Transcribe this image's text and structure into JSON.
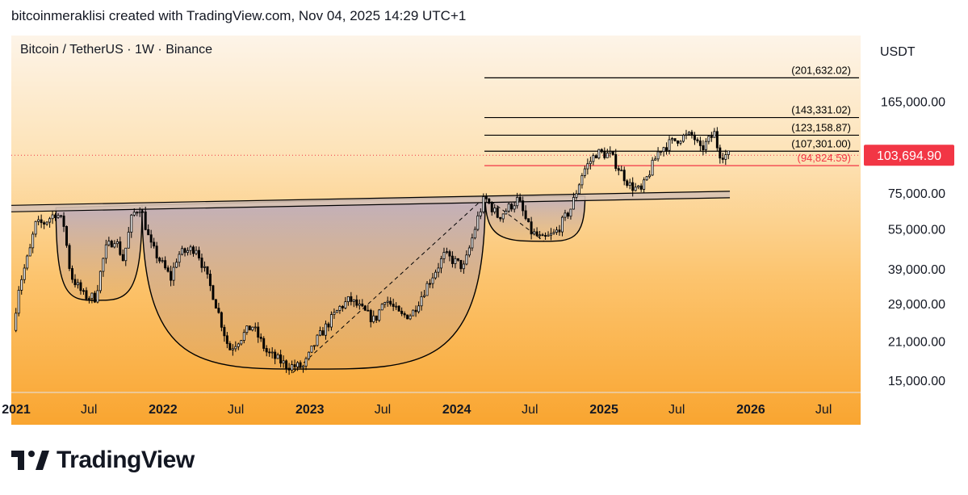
{
  "header": {
    "attribution": "bitcoinmeraklisi created with TradingView.com, Nov 04, 2025 14:29 UTC+1"
  },
  "footer": {
    "brand": "TradingView"
  },
  "chart_data": {
    "type": "candlestick",
    "title": "Bitcoin / TetherUS · 1W · Binance",
    "currency_label": "USDT",
    "y_scale": "log",
    "ylim": [
      13500,
      290000
    ],
    "xlim": [
      "2020-12-20",
      "2026-10-01"
    ],
    "y_ticks": [
      {
        "value": 165000,
        "label": "165,000.00"
      },
      {
        "value": 75000,
        "label": "75,000.00"
      },
      {
        "value": 55000,
        "label": "55,000.00"
      },
      {
        "value": 39000,
        "label": "39,000.00"
      },
      {
        "value": 29000,
        "label": "29,000.00"
      },
      {
        "value": 21000,
        "label": "21,000.00"
      },
      {
        "value": 15000,
        "label": "15,000.00"
      }
    ],
    "x_ticks": [
      {
        "date": "2021-01-01",
        "label": "2021",
        "bold": true
      },
      {
        "date": "2021-07-01",
        "label": "Jul",
        "bold": false
      },
      {
        "date": "2022-01-01",
        "label": "2022",
        "bold": true
      },
      {
        "date": "2022-07-01",
        "label": "Jul",
        "bold": false
      },
      {
        "date": "2023-01-01",
        "label": "2023",
        "bold": true
      },
      {
        "date": "2023-07-01",
        "label": "Jul",
        "bold": false
      },
      {
        "date": "2024-01-01",
        "label": "2024",
        "bold": true
      },
      {
        "date": "2024-07-01",
        "label": "Jul",
        "bold": false
      },
      {
        "date": "2025-01-01",
        "label": "2025",
        "bold": true
      },
      {
        "date": "2025-07-01",
        "label": "Jul",
        "bold": false
      },
      {
        "date": "2026-01-01",
        "label": "2026",
        "bold": true
      },
      {
        "date": "2026-07-01",
        "label": "Jul",
        "bold": false
      }
    ],
    "current_price": {
      "value": 103694.9,
      "label": "103,694.90",
      "color": "#f23645"
    },
    "horizontal_levels": [
      {
        "value": 201632.02,
        "label": "(201,632.02)",
        "color": "#000000"
      },
      {
        "value": 143331.02,
        "label": "(143,331.02)",
        "color": "#000000"
      },
      {
        "value": 123158.87,
        "label": "(123,158.87)",
        "color": "#000000"
      },
      {
        "value": 107301.0,
        "label": "(107,301.00)",
        "color": "#000000"
      },
      {
        "value": 94824.59,
        "label": "(94,824.59)",
        "color": "#f23645"
      }
    ],
    "levels_start_date": "2024-03-10",
    "neckline": {
      "start": {
        "date": "2020-12-20",
        "value": 66000
      },
      "end": {
        "date": "2025-11-10",
        "value": 74500
      }
    },
    "cups": [
      {
        "start": {
          "date": "2021-04-10",
          "value": 66000
        },
        "bottom": {
          "date": "2021-07-20",
          "value": 29800
        },
        "end": {
          "date": "2021-11-10",
          "value": 67500
        }
      },
      {
        "start": {
          "date": "2021-11-10",
          "value": 67500
        },
        "bottom": {
          "date": "2022-12-28",
          "value": 16500
        },
        "end": {
          "date": "2024-03-12",
          "value": 72500
        }
      },
      {
        "start": {
          "date": "2024-03-12",
          "value": 72500
        },
        "bottom": {
          "date": "2024-08-05",
          "value": 49500
        },
        "end": {
          "date": "2024-11-15",
          "value": 73000
        }
      }
    ],
    "dashed_trendlines": [
      {
        "start": {
          "date": "2022-11-20",
          "value": 16000
        },
        "end": {
          "date": "2024-03-12",
          "value": 72500
        }
      },
      {
        "start": {
          "date": "2024-03-12",
          "value": 72500
        },
        "end": {
          "date": "2024-08-05",
          "value": 49500
        }
      }
    ],
    "colors": {
      "up": "#000000",
      "down": "#000000",
      "cup_fill": "#7e7ec8",
      "neckline": "#000000"
    },
    "price_anchors": [
      [
        "2020-12-28",
        23000
      ],
      [
        "2021-01-10",
        33000
      ],
      [
        "2021-02-10",
        47000
      ],
      [
        "2021-02-20",
        57000
      ],
      [
        "2021-03-15",
        58000
      ],
      [
        "2021-04-14",
        63500
      ],
      [
        "2021-05-03",
        57000
      ],
      [
        "2021-05-20",
        37000
      ],
      [
        "2021-06-22",
        31000
      ],
      [
        "2021-07-20",
        30500
      ],
      [
        "2021-08-14",
        46000
      ],
      [
        "2021-09-07",
        51000
      ],
      [
        "2021-09-28",
        42000
      ],
      [
        "2021-10-20",
        62000
      ],
      [
        "2021-11-10",
        67000
      ],
      [
        "2021-12-04",
        48000
      ],
      [
        "2022-01-24",
        36000
      ],
      [
        "2022-02-10",
        44000
      ],
      [
        "2022-03-28",
        47000
      ],
      [
        "2022-05-10",
        31000
      ],
      [
        "2022-06-18",
        19500
      ],
      [
        "2022-08-14",
        24000
      ],
      [
        "2022-09-20",
        19000
      ],
      [
        "2022-11-09",
        17000
      ],
      [
        "2022-12-20",
        16800
      ],
      [
        "2023-01-20",
        21000
      ],
      [
        "2023-02-20",
        24500
      ],
      [
        "2023-03-20",
        28000
      ],
      [
        "2023-04-14",
        30000
      ],
      [
        "2023-06-15",
        25000
      ],
      [
        "2023-07-10",
        30500
      ],
      [
        "2023-08-18",
        26000
      ],
      [
        "2023-09-15",
        26500
      ],
      [
        "2023-10-23",
        34000
      ],
      [
        "2023-12-05",
        44000
      ],
      [
        "2024-01-23",
        39500
      ],
      [
        "2024-02-28",
        62000
      ],
      [
        "2024-03-14",
        72000
      ],
      [
        "2024-04-17",
        61000
      ],
      [
        "2024-06-05",
        71000
      ],
      [
        "2024-07-05",
        54000
      ],
      [
        "2024-08-05",
        50000
      ],
      [
        "2024-09-06",
        53000
      ],
      [
        "2024-10-15",
        66000
      ],
      [
        "2024-11-13",
        90000
      ],
      [
        "2024-12-17",
        106000
      ],
      [
        "2025-01-20",
        104000
      ],
      [
        "2025-03-10",
        80000
      ],
      [
        "2025-04-07",
        76000
      ],
      [
        "2025-05-22",
        109000
      ],
      [
        "2025-07-14",
        121000
      ],
      [
        "2025-08-14",
        123000
      ],
      [
        "2025-09-01",
        108000
      ],
      [
        "2025-10-06",
        125000
      ],
      [
        "2025-10-17",
        106000
      ],
      [
        "2025-11-03",
        103694
      ]
    ]
  }
}
